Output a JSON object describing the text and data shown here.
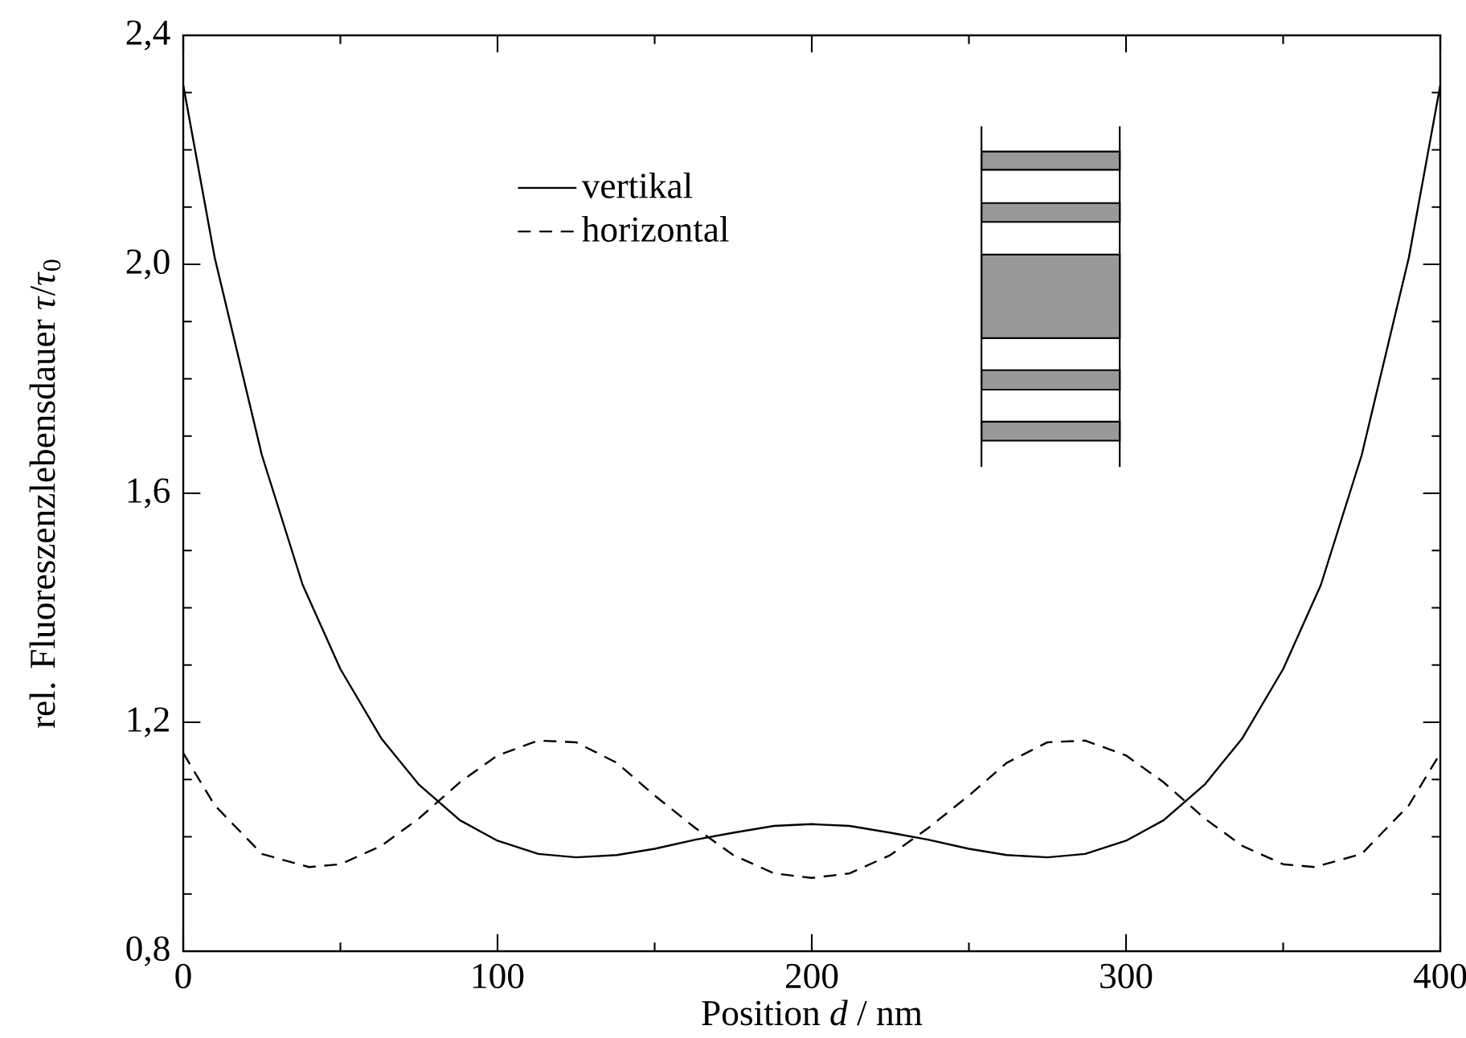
{
  "chart_data": {
    "type": "line",
    "xlabel": "Position *d* / nm",
    "ylabel": "rel. Fluoreszenzlebensdauer *τ*/*τ*$_{0}$",
    "xlim": [
      0,
      400
    ],
    "ylim": [
      0.8,
      2.4
    ],
    "xticks": [
      0,
      100,
      200,
      300,
      400
    ],
    "yticks": [
      {
        "value": 0.8,
        "label": "0,8"
      },
      {
        "value": 1.2,
        "label": "1,2"
      },
      {
        "value": 1.6,
        "label": "1,6"
      },
      {
        "value": 2.0,
        "label": "2,0"
      },
      {
        "value": 2.4,
        "label": "2,4"
      }
    ],
    "legend": "top left",
    "marker": "none",
    "grid": false,
    "series": [
      {
        "name": "vertikal",
        "color": "#000000",
        "line_style": "solid",
        "x": [
          0,
          10,
          25,
          38,
          50,
          63,
          75,
          88,
          100,
          113,
          125,
          138,
          150,
          163,
          175,
          188,
          200,
          212,
          225,
          237,
          250,
          262,
          275,
          287,
          300,
          312,
          325,
          337,
          350,
          362,
          375,
          390,
          400
        ],
        "values": [
          2.313,
          2.012,
          1.667,
          1.44,
          1.293,
          1.172,
          1.091,
          1.029,
          0.993,
          0.97,
          0.964,
          0.968,
          0.979,
          0.995,
          1.007,
          1.019,
          1.022,
          1.019,
          1.007,
          0.995,
          0.979,
          0.968,
          0.964,
          0.97,
          0.993,
          1.029,
          1.091,
          1.172,
          1.293,
          1.44,
          1.667,
          2.012,
          2.313
        ]
      },
      {
        "name": "horizontal",
        "color": "#000000",
        "line_style": "dashed",
        "x": [
          0,
          10,
          25,
          40,
          50,
          63,
          75,
          88,
          100,
          113,
          125,
          138,
          150,
          163,
          175,
          188,
          200,
          212,
          225,
          237,
          250,
          262,
          275,
          287,
          300,
          312,
          325,
          337,
          350,
          360,
          375,
          390,
          400
        ],
        "values": [
          1.146,
          1.055,
          0.97,
          0.947,
          0.952,
          0.984,
          1.032,
          1.095,
          1.142,
          1.168,
          1.165,
          1.129,
          1.072,
          1.015,
          0.968,
          0.936,
          0.928,
          0.936,
          0.968,
          1.015,
          1.072,
          1.129,
          1.165,
          1.168,
          1.142,
          1.095,
          1.032,
          0.984,
          0.952,
          0.947,
          0.97,
          1.055,
          1.146
        ]
      }
    ]
  }
}
